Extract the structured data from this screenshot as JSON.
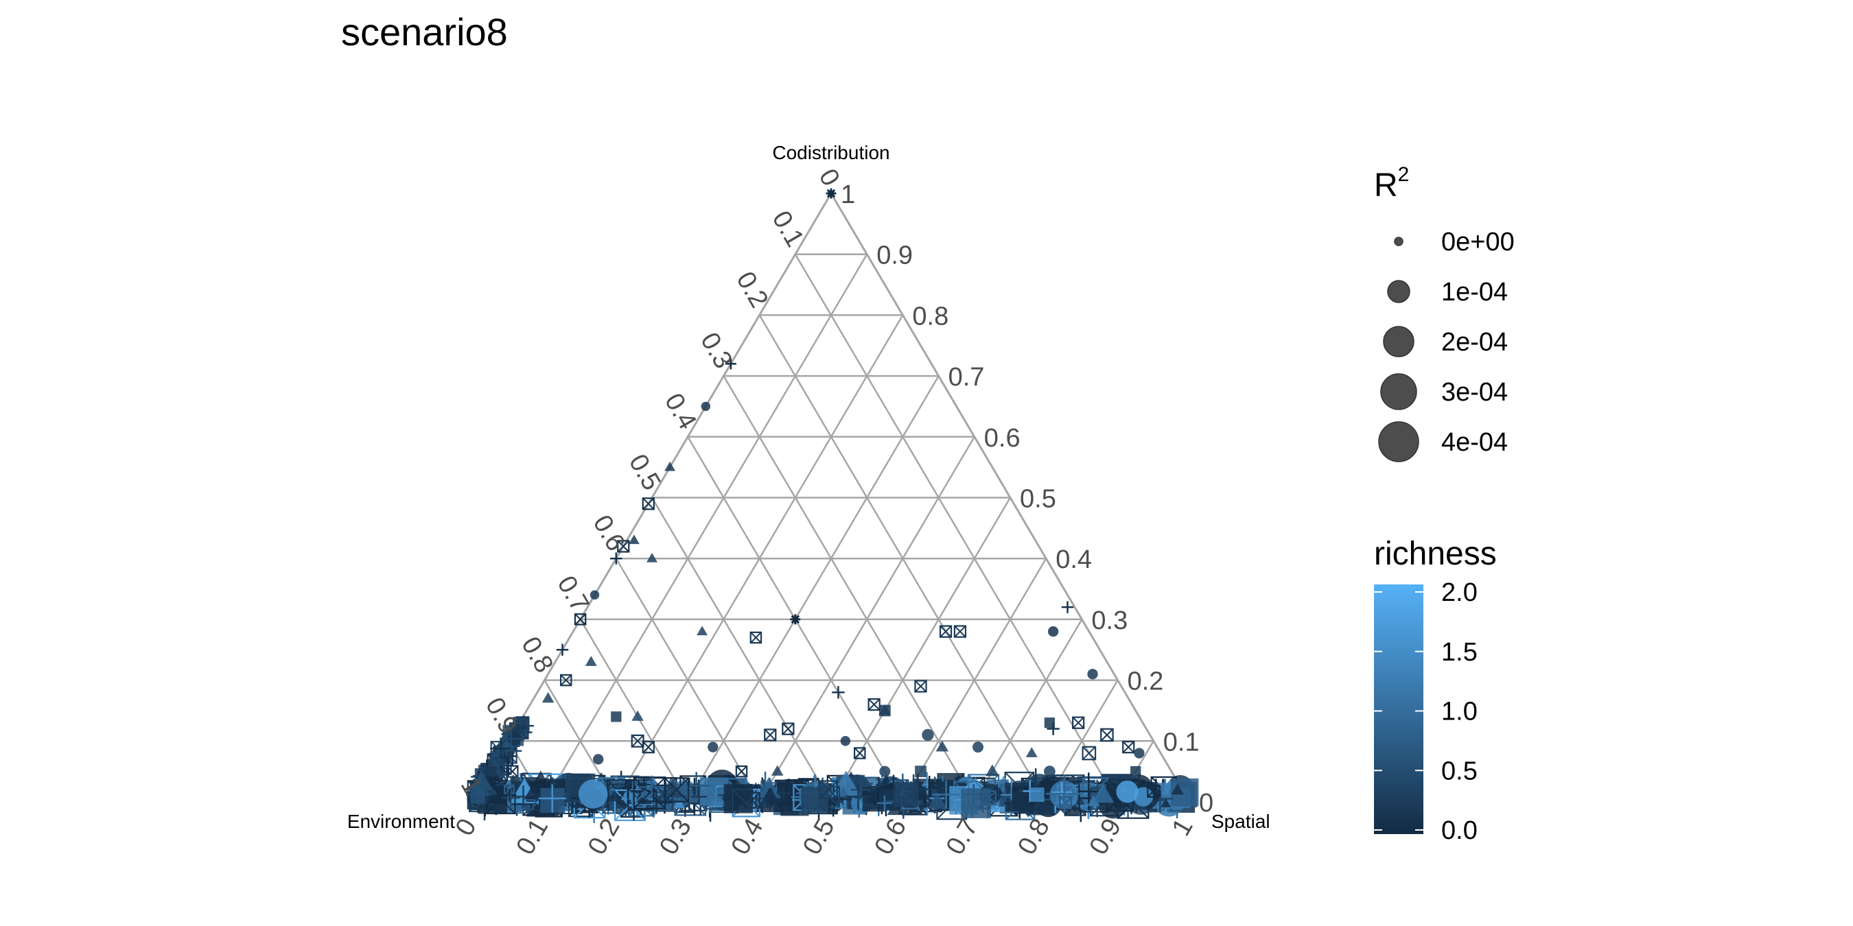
{
  "chart_data": {
    "type": "scatter",
    "subtype": "ternary",
    "title": "scenario8",
    "axes": {
      "top": "Codistribution",
      "left": "Environment",
      "right": "Spatial"
    },
    "ticks": [
      0,
      0.1,
      0.2,
      0.3,
      0.4,
      0.5,
      0.6,
      0.7,
      0.8,
      0.9,
      1
    ],
    "tick_labels": [
      "0",
      "0.1",
      "0.2",
      "0.3",
      "0.4",
      "0.5",
      "0.6",
      "0.7",
      "0.8",
      "0.9",
      "1"
    ],
    "grid": true,
    "grid_color": "#a6a6a6",
    "point_color_low": "#132b43",
    "point_color_high": "#56b1f7",
    "legend_size": {
      "title": "R",
      "title_superscript": "2",
      "labels": [
        "0e+00",
        "1e-04",
        "2e-04",
        "3e-04",
        "4e-04"
      ],
      "values": [
        0,
        0.0001,
        0.0002,
        0.0003,
        0.0004
      ]
    },
    "legend_color": {
      "title": "richness",
      "labels": [
        "2.0",
        "1.5",
        "1.0",
        "0.5",
        "0.0"
      ],
      "values": [
        2.0,
        1.5,
        1.0,
        0.5,
        0.0
      ],
      "range": [
        0,
        2
      ]
    },
    "points_note": "Compositions [Environment, Spatial, Codistribution]; shape = symbol, r2 = size variable, richness = color variable.",
    "points": [
      {
        "env": 0.0,
        "spa": 0.0,
        "cod": 1.0,
        "shape": "asterisk",
        "r2": 2e-05,
        "richness": 0.0
      },
      {
        "env": 0.28,
        "spa": 0.0,
        "cod": 0.72,
        "shape": "plus",
        "r2": 2e-05,
        "richness": 0.0
      },
      {
        "env": 0.35,
        "spa": 0.0,
        "cod": 0.65,
        "shape": "circle",
        "r2": 2e-05,
        "richness": 0.2
      },
      {
        "env": 0.45,
        "spa": 0.0,
        "cod": 0.55,
        "shape": "triangle",
        "r2": 3e-05,
        "richness": 0.2
      },
      {
        "env": 0.51,
        "spa": 0.0,
        "cod": 0.49,
        "shape": "boxx",
        "r2": 5e-05,
        "richness": 0.1
      },
      {
        "env": 0.56,
        "spa": 0.01,
        "cod": 0.43,
        "shape": "triangle",
        "r2": 3e-05,
        "richness": 0.2
      },
      {
        "env": 0.58,
        "spa": 0.0,
        "cod": 0.42,
        "shape": "boxx",
        "r2": 5e-05,
        "richness": 0.1
      },
      {
        "env": 0.6,
        "spa": 0.0,
        "cod": 0.4,
        "shape": "plus",
        "r2": 3e-05,
        "richness": 0.1
      },
      {
        "env": 0.55,
        "spa": 0.05,
        "cod": 0.4,
        "shape": "triangle",
        "r2": 3e-05,
        "richness": 0.3
      },
      {
        "env": 0.66,
        "spa": 0.0,
        "cod": 0.34,
        "shape": "circle",
        "r2": 2e-05,
        "richness": 0.2
      },
      {
        "env": 0.7,
        "spa": 0.0,
        "cod": 0.3,
        "shape": "boxx",
        "r2": 4e-05,
        "richness": 0.1
      },
      {
        "env": 0.75,
        "spa": 0.0,
        "cod": 0.25,
        "shape": "plus",
        "r2": 3e-05,
        "richness": 0.1
      },
      {
        "env": 0.72,
        "spa": 0.05,
        "cod": 0.23,
        "shape": "triangle",
        "r2": 4e-05,
        "richness": 0.3
      },
      {
        "env": 0.81,
        "spa": 0.02,
        "cod": 0.17,
        "shape": "triangle",
        "r2": 5e-05,
        "richness": 0.3
      },
      {
        "env": 0.77,
        "spa": 0.03,
        "cod": 0.2,
        "shape": "boxx",
        "r2": 4e-05,
        "richness": 0.2
      },
      {
        "env": 0.88,
        "spa": 0.0,
        "cod": 0.12,
        "shape": "circle",
        "r2": 2e-05,
        "richness": 0.2
      },
      {
        "env": 0.73,
        "spa": 0.13,
        "cod": 0.14,
        "shape": "square",
        "r2": 4e-05,
        "richness": 0.2
      },
      {
        "env": 0.7,
        "spa": 0.16,
        "cod": 0.14,
        "shape": "triangle",
        "r2": 5e-05,
        "richness": 0.4
      },
      {
        "env": 0.54,
        "spa": 0.18,
        "cod": 0.28,
        "shape": "triangle",
        "r2": 3e-05,
        "richness": 0.3
      },
      {
        "env": 0.4,
        "spa": 0.3,
        "cod": 0.3,
        "shape": "asterisk",
        "r2": 2e-05,
        "richness": 0.0
      },
      {
        "env": 0.47,
        "spa": 0.26,
        "cod": 0.27,
        "shape": "boxx",
        "r2": 4e-05,
        "richness": 0.2
      },
      {
        "env": 0.4,
        "spa": 0.42,
        "cod": 0.18,
        "shape": "plus",
        "r2": 4e-05,
        "richness": 0.2
      },
      {
        "env": 0.36,
        "spa": 0.48,
        "cod": 0.16,
        "shape": "boxx",
        "r2": 5e-05,
        "richness": 0.2
      },
      {
        "env": 0.35,
        "spa": 0.5,
        "cod": 0.15,
        "shape": "square",
        "r2": 6e-05,
        "richness": 0.2
      },
      {
        "env": 0.35,
        "spa": 0.5,
        "cod": 0.15,
        "shape": "triangle",
        "r2": 5e-05,
        "richness": 0.3
      },
      {
        "env": 0.31,
        "spa": 0.58,
        "cod": 0.11,
        "shape": "circle",
        "r2": 7e-05,
        "richness": 0.3
      },
      {
        "env": 0.28,
        "spa": 0.53,
        "cod": 0.19,
        "shape": "boxx",
        "r2": 5e-05,
        "richness": 0.2
      },
      {
        "env": 0.2,
        "spa": 0.52,
        "cod": 0.28,
        "shape": "boxx",
        "r2": 5e-05,
        "richness": 0.2
      },
      {
        "env": 0.18,
        "spa": 0.54,
        "cod": 0.28,
        "shape": "boxx",
        "r2": 5e-05,
        "richness": 0.2
      },
      {
        "env": 0.05,
        "spa": 0.67,
        "cod": 0.28,
        "shape": "circle",
        "r2": 4e-05,
        "richness": 0.1
      },
      {
        "env": 0.01,
        "spa": 0.67,
        "cod": 0.32,
        "shape": "plus",
        "r2": 3e-05,
        "richness": 0.1
      },
      {
        "env": 0.13,
        "spa": 0.75,
        "cod": 0.12,
        "shape": "plus",
        "r2": 4e-05,
        "richness": 0.2
      },
      {
        "env": 0.13,
        "spa": 0.74,
        "cod": 0.13,
        "shape": "square",
        "r2": 4e-05,
        "richness": 0.2
      },
      {
        "env": 0.09,
        "spa": 0.78,
        "cod": 0.13,
        "shape": "boxx",
        "r2": 5e-05,
        "richness": 0.2
      },
      {
        "env": 0.03,
        "spa": 0.76,
        "cod": 0.21,
        "shape": "circle",
        "r2": 4e-05,
        "richness": 0.2
      },
      {
        "env": 0.06,
        "spa": 0.83,
        "cod": 0.11,
        "shape": "boxx",
        "r2": 7e-05,
        "richness": 0.2
      },
      {
        "env": 0.1,
        "spa": 0.82,
        "cod": 0.08,
        "shape": "boxx",
        "r2": 9e-05,
        "richness": 0.3
      },
      {
        "env": 0.04,
        "spa": 0.87,
        "cod": 0.09,
        "shape": "boxx",
        "r2": 5e-05,
        "richness": 0.2
      },
      {
        "env": 0.03,
        "spa": 0.89,
        "cod": 0.08,
        "shape": "circle",
        "r2": 4e-05,
        "richness": 0.2
      },
      {
        "env": 0.18,
        "spa": 0.74,
        "cod": 0.08,
        "shape": "triangle",
        "r2": 4e-05,
        "richness": 0.3
      },
      {
        "env": 0.3,
        "spa": 0.61,
        "cod": 0.09,
        "shape": "triangle",
        "r2": 6e-05,
        "richness": 0.3
      },
      {
        "env": 0.25,
        "spa": 0.66,
        "cod": 0.09,
        "shape": "circle",
        "r2": 5e-05,
        "richness": 0.3
      },
      {
        "env": 0.42,
        "spa": 0.5,
        "cod": 0.08,
        "shape": "boxx",
        "r2": 4e-05,
        "richness": 0.2
      },
      {
        "env": 0.5,
        "spa": 0.38,
        "cod": 0.12,
        "shape": "boxx",
        "r2": 5e-05,
        "richness": 0.2
      },
      {
        "env": 0.53,
        "spa": 0.36,
        "cod": 0.11,
        "shape": "boxx",
        "r2": 5e-05,
        "richness": 0.2
      },
      {
        "env": 0.43,
        "spa": 0.47,
        "cod": 0.1,
        "shape": "circle",
        "r2": 3e-05,
        "richness": 0.2
      },
      {
        "env": 0.62,
        "spa": 0.29,
        "cod": 0.09,
        "shape": "circle",
        "r2": 4e-05,
        "richness": 0.2
      },
      {
        "env": 0.71,
        "spa": 0.2,
        "cod": 0.09,
        "shape": "boxx",
        "r2": 5e-05,
        "richness": 0.2
      },
      {
        "env": 0.72,
        "spa": 0.18,
        "cod": 0.1,
        "shape": "boxx",
        "r2": 6e-05,
        "richness": 0.2
      },
      {
        "env": 0.79,
        "spa": 0.14,
        "cod": 0.07,
        "shape": "circle",
        "r2": 4e-05,
        "richness": 0.2
      },
      {
        "env": 0.4,
        "spa": 0.55,
        "cod": 0.05,
        "shape": "circle",
        "r2": 5e-05,
        "richness": 0.3
      },
      {
        "env": 0.35,
        "spa": 0.6,
        "cod": 0.05,
        "shape": "square",
        "r2": 6e-05,
        "richness": 0.3
      },
      {
        "env": 0.55,
        "spa": 0.4,
        "cod": 0.05,
        "shape": "triangle",
        "r2": 5e-05,
        "richness": 0.3
      },
      {
        "env": 0.6,
        "spa": 0.35,
        "cod": 0.05,
        "shape": "boxx",
        "r2": 4e-05,
        "richness": 0.2
      },
      {
        "env": 0.25,
        "spa": 0.7,
        "cod": 0.05,
        "shape": "triangle",
        "r2": 8e-05,
        "richness": 0.3
      },
      {
        "env": 0.17,
        "spa": 0.78,
        "cod": 0.05,
        "shape": "circle",
        "r2": 6e-05,
        "richness": 0.3
      },
      {
        "env": 0.92,
        "spa": 0.03,
        "cod": 0.05,
        "shape": "boxx",
        "r2": 5e-05,
        "richness": 0.2
      },
      {
        "env": 0.95,
        "spa": 0.0,
        "cod": 0.05,
        "shape": "square",
        "r2": 4e-05,
        "richness": 0.2
      },
      {
        "env": 0.05,
        "spa": 0.9,
        "cod": 0.05,
        "shape": "square",
        "r2": 4e-05,
        "richness": 0.2
      }
    ],
    "dense_band": {
      "note": "Heavy overplotting of many points along the Environment–Spatial edge (codistribution about 0–0.02) and along the Environment–Codistribution edge near the Environment corner.",
      "cod_range": [
        0,
        0.02
      ],
      "richness_range": [
        0,
        1.8
      ]
    }
  }
}
